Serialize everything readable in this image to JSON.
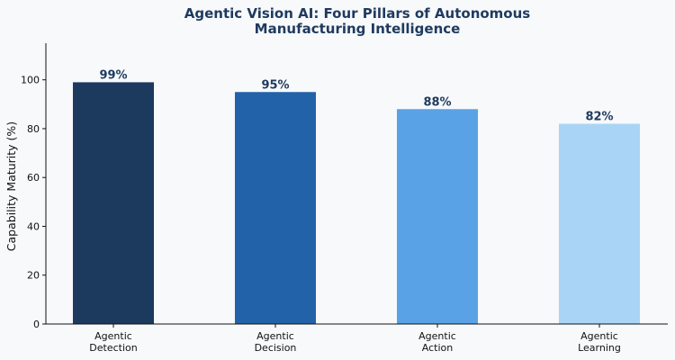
{
  "chart_data": {
    "type": "bar",
    "title": [
      "Agentic Vision AI: Four Pillars of Autonomous",
      "Manufacturing Intelligence"
    ],
    "ylabel": "Capability Maturity (%)",
    "xlabel": "",
    "ylim": [
      0,
      115
    ],
    "yticks": [
      "0",
      "20",
      "40",
      "60",
      "80",
      "100"
    ],
    "categories": [
      [
        "Agentic",
        "Detection"
      ],
      [
        "Agentic",
        "Decision"
      ],
      [
        "Agentic",
        "Action"
      ],
      [
        "Agentic",
        "Learning"
      ]
    ],
    "values": [
      99,
      95,
      88,
      82
    ],
    "data_labels": [
      "99%",
      "95%",
      "88%",
      "82%"
    ],
    "colors": [
      "#1c3a5e",
      "#2262a8",
      "#5aa2e6",
      "#a9d4f6"
    ],
    "grid": false,
    "legend": "none"
  }
}
